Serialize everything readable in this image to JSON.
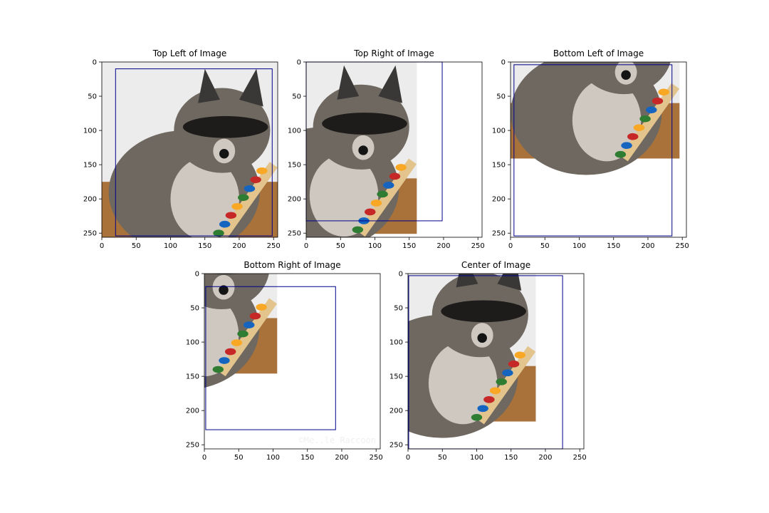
{
  "colors": {
    "box": "#00008b",
    "spine": "#000000",
    "fur_dark": "#3a3836",
    "fur_mid": "#6e6860",
    "fur_light": "#cfc8c0",
    "wood": "#a8723a",
    "wall": "#ececec"
  },
  "chart_data": [
    {
      "type": "image",
      "title": "Top Left of Image",
      "content": "raccoon photo (top-left crop)",
      "xlim": [
        0,
        256
      ],
      "ylim": [
        256,
        0
      ],
      "xticks": [
        0,
        50,
        100,
        150,
        200,
        250
      ],
      "yticks": [
        0,
        50,
        100,
        150,
        200,
        250
      ],
      "box": {
        "x0": 20,
        "y0": 10,
        "x1": 248,
        "y1": 254
      },
      "watermark": ""
    },
    {
      "type": "image",
      "title": "Top Right of Image",
      "content": "raccoon photo (top-right crop)",
      "xlim": [
        0,
        256
      ],
      "ylim": [
        256,
        0
      ],
      "xticks": [
        0,
        50,
        100,
        150,
        200,
        250
      ],
      "yticks": [
        0,
        50,
        100,
        150,
        200,
        250
      ],
      "box": {
        "x0": 0,
        "y0": 0,
        "x1": 198,
        "y1": 232
      },
      "watermark": ""
    },
    {
      "type": "image",
      "title": "Bottom Left of Image",
      "content": "raccoon photo (bottom-left crop)",
      "xlim": [
        0,
        256
      ],
      "ylim": [
        256,
        0
      ],
      "xticks": [
        0,
        50,
        100,
        150,
        200,
        250
      ],
      "yticks": [
        0,
        50,
        100,
        150,
        200,
        250
      ],
      "box": {
        "x0": 5,
        "y0": 4,
        "x1": 235,
        "y1": 254
      },
      "watermark": ""
    },
    {
      "type": "image",
      "title": "Bottom Right of Image",
      "content": "raccoon photo (bottom-right crop)",
      "xlim": [
        0,
        256
      ],
      "ylim": [
        256,
        0
      ],
      "xticks": [
        0,
        50,
        100,
        150,
        200,
        250
      ],
      "yticks": [
        0,
        50,
        100,
        150,
        200,
        250
      ],
      "box": {
        "x0": 2,
        "y0": 19,
        "x1": 191,
        "y1": 228
      },
      "watermark": "©Me..le Raccoon"
    },
    {
      "type": "image",
      "title": "Center of Image",
      "content": "raccoon photo (center crop)",
      "xlim": [
        0,
        256
      ],
      "ylim": [
        256,
        0
      ],
      "xticks": [
        0,
        50,
        100,
        150,
        200,
        250
      ],
      "yticks": [
        0,
        50,
        100,
        150,
        200,
        250
      ],
      "box": {
        "x0": 1,
        "y0": 3,
        "x1": 225,
        "y1": 256
      },
      "watermark": ""
    }
  ]
}
